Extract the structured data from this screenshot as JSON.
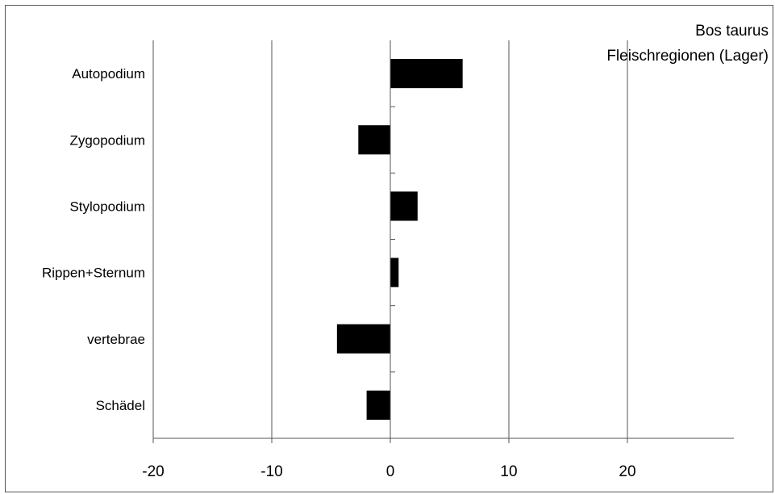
{
  "chart_data": {
    "type": "bar",
    "orientation": "horizontal",
    "title_lines": [
      "Bos taurus",
      "Fleischregionen (Lager)"
    ],
    "title": "Bos taurus Fleischregionen (Lager)",
    "categories": [
      "Autopodium",
      "Zygopodium",
      "Stylopodium",
      "Rippen+Sternum",
      "vertebrae",
      "Schädel"
    ],
    "values": [
      6.1,
      -2.7,
      2.3,
      0.7,
      -4.5,
      -2.0
    ],
    "xlim": [
      -20,
      29
    ],
    "xticks": [
      -20,
      -10,
      0,
      10,
      20
    ],
    "xtick_labels": [
      "-20",
      "-10",
      "0",
      "10",
      "20"
    ],
    "xlabel": "",
    "ylabel": "",
    "grid": "vertical",
    "legend": "none",
    "bar_color": "#000000",
    "grid_color": "#555555"
  }
}
